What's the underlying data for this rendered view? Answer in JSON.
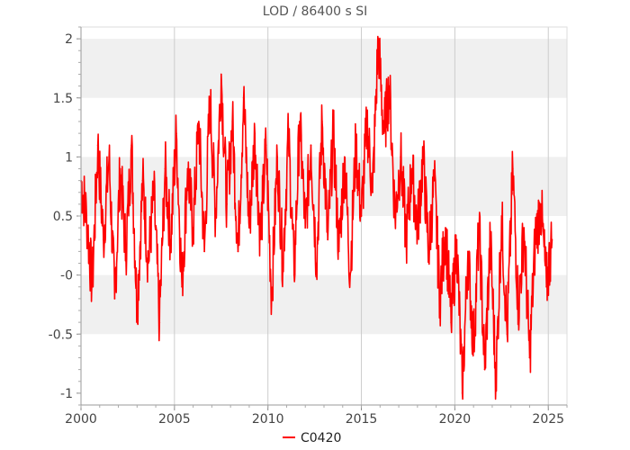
{
  "chart_data": {
    "type": "line",
    "title": "LOD / 86400 s SI",
    "xlabel": "",
    "ylabel": "",
    "xlim": [
      2000.0,
      2026.0
    ],
    "ylim": [
      -1.1,
      2.1
    ],
    "x_ticks": [
      2000,
      2005,
      2010,
      2015,
      2020,
      2025
    ],
    "x_tick_labels": [
      "2000",
      "2005",
      "2010",
      "2015",
      "2020",
      "2025"
    ],
    "y_ticks": [
      2,
      1.5,
      1,
      0.5,
      0,
      -0.5,
      -1
    ],
    "y_tick_labels": [
      "2",
      "1.5",
      "1",
      "0.5",
      "-0",
      "-0.5",
      "-1"
    ],
    "grid": true,
    "legend_position": "bottom",
    "colors": {
      "series": "#ff0000",
      "band": "#f0f0f0",
      "grid": "#cccccc"
    },
    "series": [
      {
        "name": "C0420",
        "x": [
          2000.0,
          2000.3,
          2000.6,
          2000.9,
          2001.2,
          2001.5,
          2001.8,
          2002.1,
          2002.4,
          2002.7,
          2003.0,
          2003.3,
          2003.6,
          2003.9,
          2004.2,
          2004.5,
          2004.8,
          2005.1,
          2005.4,
          2005.7,
          2006.0,
          2006.3,
          2006.6,
          2006.9,
          2007.2,
          2007.5,
          2007.8,
          2008.1,
          2008.4,
          2008.7,
          2009.0,
          2009.3,
          2009.6,
          2009.9,
          2010.2,
          2010.5,
          2010.8,
          2011.1,
          2011.4,
          2011.7,
          2012.0,
          2012.3,
          2012.6,
          2012.9,
          2013.2,
          2013.5,
          2013.8,
          2014.1,
          2014.4,
          2014.7,
          2015.0,
          2015.3,
          2015.6,
          2015.9,
          2016.2,
          2016.5,
          2016.8,
          2017.1,
          2017.4,
          2017.7,
          2018.0,
          2018.3,
          2018.6,
          2018.9,
          2019.2,
          2019.5,
          2019.8,
          2020.1,
          2020.4,
          2020.7,
          2021.0,
          2021.3,
          2021.6,
          2021.9,
          2022.2,
          2022.5,
          2022.8,
          2023.1,
          2023.4,
          2023.7,
          2024.0,
          2024.3,
          2024.6,
          2024.9,
          2025.2
        ],
        "values": [
          0.8,
          0.5,
          -0.1,
          1.1,
          0.3,
          1.0,
          -0.2,
          0.9,
          0.2,
          1.1,
          -0.3,
          0.8,
          0.1,
          0.7,
          -0.4,
          0.9,
          0.3,
          1.2,
          -0.1,
          0.9,
          0.4,
          1.3,
          0.2,
          1.5,
          0.5,
          1.7,
          0.6,
          1.3,
          0.2,
          1.5,
          0.4,
          1.2,
          0.3,
          1.1,
          -0.2,
          1.0,
          0.1,
          1.2,
          0.0,
          1.3,
          0.4,
          1.1,
          0.1,
          1.3,
          0.3,
          1.2,
          0.2,
          1.0,
          0.0,
          1.1,
          0.5,
          1.3,
          0.7,
          2.0,
          1.2,
          1.6,
          0.5,
          1.0,
          0.3,
          0.9,
          0.4,
          1.0,
          0.2,
          0.8,
          -0.2,
          0.4,
          -0.4,
          0.3,
          -1.0,
          0.2,
          -0.6,
          0.4,
          -0.8,
          0.3,
          -0.9,
          0.5,
          -0.5,
          0.9,
          -0.3,
          0.4,
          -0.7,
          0.3,
          0.6,
          -0.1,
          0.3
        ]
      }
    ]
  }
}
